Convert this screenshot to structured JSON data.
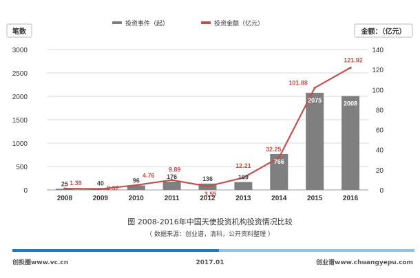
{
  "chart_data": {
    "type": "bar+line",
    "title": "图 2008-2016年中国天使投资机构投资情况比较",
    "source": "（ 数据来源：创业谱，清科，公开资料整理 ）",
    "categories": [
      "2008",
      "2009",
      "2010",
      "2011",
      "2012",
      "2013",
      "2014",
      "2015",
      "2016"
    ],
    "bar_series": {
      "name": "投资事件（起）",
      "values": [
        25,
        40,
        96,
        176,
        136,
        169,
        766,
        2075,
        2008
      ],
      "labels": [
        "25",
        "40",
        "96",
        "176",
        "136",
        "169",
        "766",
        "2075",
        "2008"
      ],
      "color": "#7f7f7f"
    },
    "line_series": {
      "name": "投资金额（亿元）",
      "values": [
        1.39,
        0.92,
        4.76,
        9.89,
        3.55,
        12.21,
        32.25,
        101.88,
        121.92
      ],
      "labels": [
        "1.39",
        "0.92",
        "4.76",
        "9.89",
        "3.55",
        "12.21",
        "32.25",
        "101.88",
        "121.92"
      ],
      "color": "#c0504d"
    },
    "y_left": {
      "label": "笔数",
      "ylim": [
        0,
        3000
      ],
      "ticks": [
        "0",
        "500",
        "1000",
        "1500",
        "2000",
        "2500",
        "3000"
      ]
    },
    "y_right": {
      "label": "金额：（亿元）",
      "ylim": [
        0,
        140
      ],
      "ticks": [
        "0",
        "20",
        "40",
        "60",
        "80",
        "100",
        "120",
        "140"
      ]
    },
    "legend_position": "top-center"
  },
  "footer": {
    "left": "创投圈www.vc.cn",
    "center": "2017.01",
    "right": "创业谱www.chuangyepu.com"
  },
  "colors": {
    "bar": "#7f7f7f",
    "line": "#c0504d",
    "rule_light": "#8ec4e0",
    "rule_dark": "#1e7fb8"
  }
}
